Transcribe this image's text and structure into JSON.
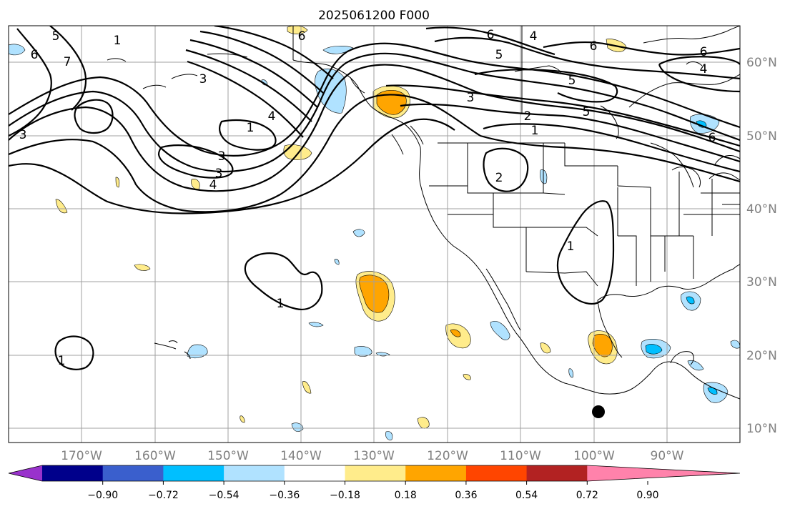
{
  "title": "2025061200 F000",
  "lon_labels": [
    "170°W",
    "160°W",
    "150°W",
    "140°W",
    "130°W",
    "120°W",
    "110°W",
    "100°W",
    "90°W"
  ],
  "lat_labels": [
    "60°N",
    "50°N",
    "40°N",
    "30°N",
    "20°N",
    "10°N"
  ],
  "colorbar": {
    "colors": [
      "#9932cc",
      "#00008b",
      "#3a5fcd",
      "#00bfff",
      "#b0e2ff",
      "#ffffff",
      "#ffec8b",
      "#ffa500",
      "#ff4500",
      "#b22222",
      "#ff82ab"
    ],
    "tick_labels": [
      "−0.90",
      "−0.72",
      "−0.54",
      "−0.36",
      "−0.18",
      "0.18",
      "0.36",
      "0.54",
      "0.72",
      "0.90"
    ]
  },
  "contour_labels": [
    "3",
    "5",
    "6",
    "1",
    "7",
    "6",
    "4",
    "3",
    "1",
    "3",
    "4",
    "6",
    "4",
    "5",
    "6",
    "3",
    "2",
    "1",
    "5",
    "6",
    "4",
    "6",
    "5",
    "2",
    "1",
    "1",
    "1",
    "3"
  ]
}
